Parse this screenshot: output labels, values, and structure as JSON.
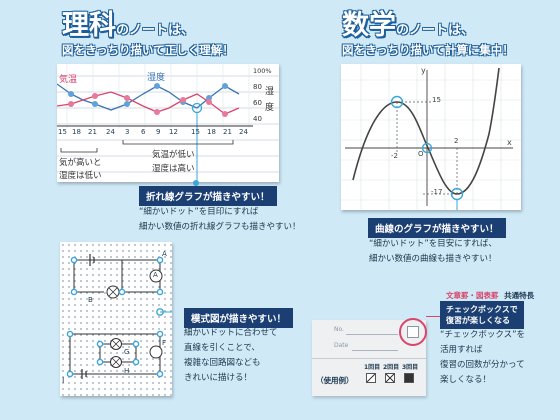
{
  "science": {
    "title": "理科",
    "title_suffix": "のノートは、",
    "subtitle": "図をきっちり描いて正しく理解！",
    "graph_tag": "折れ線グラフが描きやすい！",
    "graph_desc": [
      "“細かいドット”を目印にすれば",
      "細かい数値の折れ線グラフも描きやすい！"
    ],
    "graph_labels": {
      "temp_label": "気温",
      "humidity_label": "湿度",
      "right_scale": [
        "100%",
        "80",
        "60",
        "40"
      ],
      "right_kanji": [
        "湿",
        "度"
      ],
      "x_ticks": [
        "15",
        "18",
        "21",
        "24",
        "3",
        "6",
        "9",
        "12",
        "15",
        "18",
        "21",
        "24"
      ],
      "note_left": [
        "気が高いと",
        "湿度は低い"
      ],
      "note_mid": [
        "気温が低い",
        "湿度は高い"
      ]
    },
    "circuit_tag": "模式図が描きやすい！",
    "circuit_desc": [
      "細かいドットに合わせて",
      "直線を引くことで、",
      "複雑な回路図なども",
      "きれいに描ける！"
    ],
    "circuit_labels": {
      "A": "A",
      "B": "B",
      "F": "F",
      "G": "G",
      "H": "H",
      "I": "I",
      "meter": "A"
    }
  },
  "math": {
    "title": "数学",
    "title_suffix": "のノートは、",
    "subtitle": "図をきっちり描いて計算に集中！",
    "graph_tag": "曲線のグラフが描きやすい！",
    "graph_desc": [
      "“細かいドット”を目安にすれば、",
      "細かい数値の曲線も描きやすい！"
    ],
    "graph_labels": {
      "y_axis": "y",
      "x_axis": "x",
      "origin": "O",
      "val_15": "15",
      "val_m2": "-2",
      "val_2": "2",
      "val_m17": "-17"
    }
  },
  "feature": {
    "badge_a": "文章罫",
    "badge_sep": "・",
    "badge_b": "図表罫",
    "badge_c": "共通特長",
    "checkbox_tag": [
      "チェックボックスで",
      "復習が楽しくなる"
    ],
    "desc": [
      "“チェックボックス”を",
      "活用すれば",
      "復習の回数が分かって",
      "楽しくなる！"
    ],
    "sample": {
      "no_label": "No.",
      "date_label": "Date",
      "usage": "（使用例）",
      "rounds": [
        "1回目",
        "2回目",
        "3回目"
      ]
    }
  }
}
